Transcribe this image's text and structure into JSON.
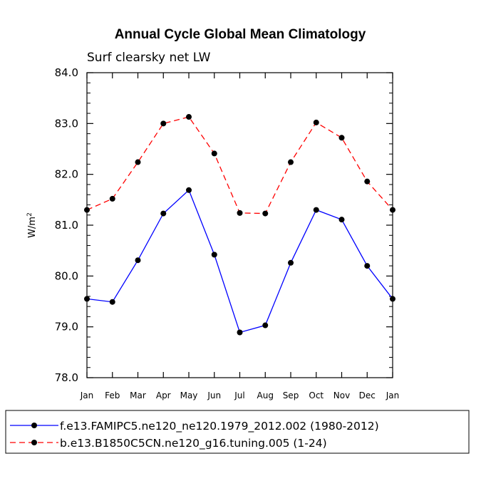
{
  "chart_data": {
    "type": "line",
    "title": "Annual Cycle Global Mean Climatology",
    "subtitle": "Surf clearsky net LW",
    "ylabel": "W/m",
    "ylabel_sup": "2",
    "xlabel": "",
    "categories": [
      "Jan",
      "Feb",
      "Mar",
      "Apr",
      "May",
      "Jun",
      "Jul",
      "Aug",
      "Sep",
      "Oct",
      "Nov",
      "Dec",
      "Jan"
    ],
    "ylim": [
      78.0,
      84.0
    ],
    "yticks": [
      "78.0",
      "79.0",
      "80.0",
      "81.0",
      "82.0",
      "83.0",
      "84.0"
    ],
    "grid": false,
    "legend_position": "bottom",
    "series": [
      {
        "name": "f.e13.FAMIPC5.ne120_ne120.1979_2012.002 (1980-2012)",
        "color": "#0000ff",
        "dash": "solid",
        "values": [
          79.55,
          79.49,
          80.31,
          81.23,
          81.69,
          80.42,
          78.89,
          79.03,
          80.26,
          81.3,
          81.11,
          80.2,
          79.55
        ]
      },
      {
        "name": "b.e13.B1850C5CN.ne120_g16.tuning.005 (1-24)",
        "color": "#ff0000",
        "dash": "dashed",
        "values": [
          81.3,
          81.52,
          82.24,
          83.0,
          83.13,
          82.41,
          81.24,
          81.23,
          82.24,
          83.02,
          82.72,
          81.86,
          81.3
        ]
      }
    ]
  }
}
